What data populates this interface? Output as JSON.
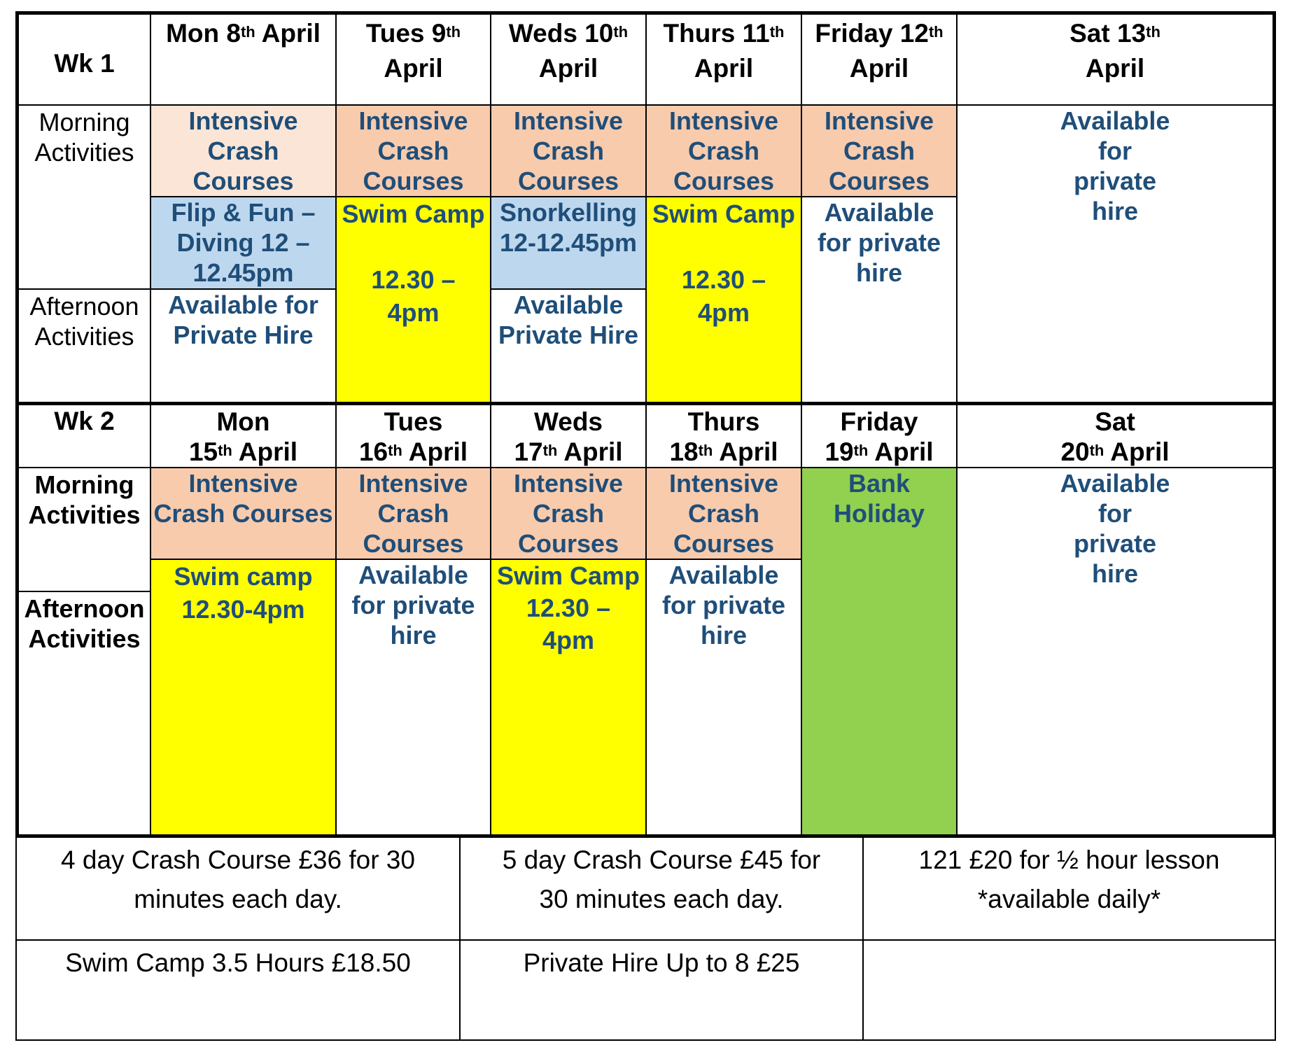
{
  "week1": {
    "label": "Wk 1",
    "days": [
      {
        "name": "Mon 8",
        "suffix": "th",
        "rest": " April"
      },
      {
        "name": "Tues 9",
        "suffix": "th",
        "rest": "April"
      },
      {
        "name": "Weds 10",
        "suffix": "th",
        "rest": "April"
      },
      {
        "name": "Thurs 11",
        "suffix": "th",
        "rest": "April"
      },
      {
        "name": "Friday 12",
        "suffix": "th",
        "rest": "April"
      },
      {
        "name": "Sat 13",
        "suffix": "th",
        "rest": "April"
      }
    ],
    "morning_label": [
      "Morning",
      "Activities"
    ],
    "afternoon_label": [
      "Afternoon",
      "Activities"
    ],
    "mon_morning": [
      "Intensive",
      "Crash",
      "Courses"
    ],
    "mon_midday": [
      "Flip & Fun –",
      "Diving 12 –",
      "12.45pm"
    ],
    "mon_afternoon": [
      "Available for",
      "Private Hire"
    ],
    "tue_morning": [
      "Intensive",
      "Crash",
      "Courses"
    ],
    "tue_camp": [
      "Swim Camp",
      "",
      "12.30 –",
      "4pm"
    ],
    "wed_morning": [
      "Intensive",
      "Crash",
      "Courses"
    ],
    "wed_midday": [
      "Snorkelling",
      "12-12.45pm"
    ],
    "wed_afternoon": [
      "Available",
      "Private Hire"
    ],
    "thu_morning": [
      "Intensive",
      "Crash",
      "Courses"
    ],
    "thu_camp": [
      "Swim Camp",
      "",
      "12.30 –",
      "4pm"
    ],
    "fri_morning": [
      "Intensive",
      "Crash",
      "Courses"
    ],
    "fri_rest": [
      "Available",
      "for private",
      "hire"
    ],
    "sat": [
      "Available",
      "for",
      "private",
      "hire"
    ]
  },
  "week2": {
    "label": "Wk 2",
    "days": [
      {
        "line1": "Mon",
        "num": "15",
        "suffix": "th",
        "rest": " April"
      },
      {
        "line1": "Tues",
        "num": "16",
        "suffix": "th",
        "rest": " April"
      },
      {
        "line1": "Weds",
        "num": "17",
        "suffix": "th",
        "rest": " April"
      },
      {
        "line1": "Thurs",
        "num": "18",
        "suffix": "th",
        "rest": " April"
      },
      {
        "line1": "Friday",
        "num": "19",
        "suffix": "th",
        "rest": " April"
      },
      {
        "line1": "Sat",
        "num": "20",
        "suffix": "th",
        "rest": " April"
      }
    ],
    "morning_label": [
      "Morning",
      "Activities"
    ],
    "afternoon_label": [
      "Afternoon",
      "Activities"
    ],
    "mon_morning": [
      "Intensive",
      "Crash Courses"
    ],
    "mon_camp": [
      "Swim camp",
      "12.30-4pm"
    ],
    "tue_morning": [
      "Intensive",
      "Crash",
      "Courses"
    ],
    "tue_afternoon": [
      "Available",
      "for private",
      "hire"
    ],
    "wed_morning": [
      "Intensive",
      "Crash",
      "Courses"
    ],
    "wed_camp": [
      "Swim Camp",
      "12.30 –",
      "4pm"
    ],
    "thu_morning": [
      "Intensive",
      "Crash",
      "Courses"
    ],
    "thu_afternoon": [
      "Available",
      "for private",
      "hire"
    ],
    "fri": [
      "Bank",
      "Holiday"
    ],
    "sat": [
      "Available",
      "for",
      "private",
      "hire"
    ]
  },
  "prices": {
    "p1": [
      "4 day Crash Course £36 for 30",
      "minutes each day."
    ],
    "p2": [
      "5 day Crash Course £45 for",
      "30 minutes each day."
    ],
    "p3": [
      "121 £20 for ½ hour lesson",
      "*available daily*"
    ],
    "p4": [
      "Swim Camp 3.5 Hours £18.50"
    ],
    "p5": [
      "Private Hire Up to 8 £25"
    ],
    "p6": []
  },
  "colors": {
    "text_blue": "#1f4e79",
    "peach": "#f8cbad",
    "peach_light": "#fbe5d6",
    "light_blue": "#bdd7ee",
    "yellow": "#ffff00",
    "green": "#92d050"
  }
}
